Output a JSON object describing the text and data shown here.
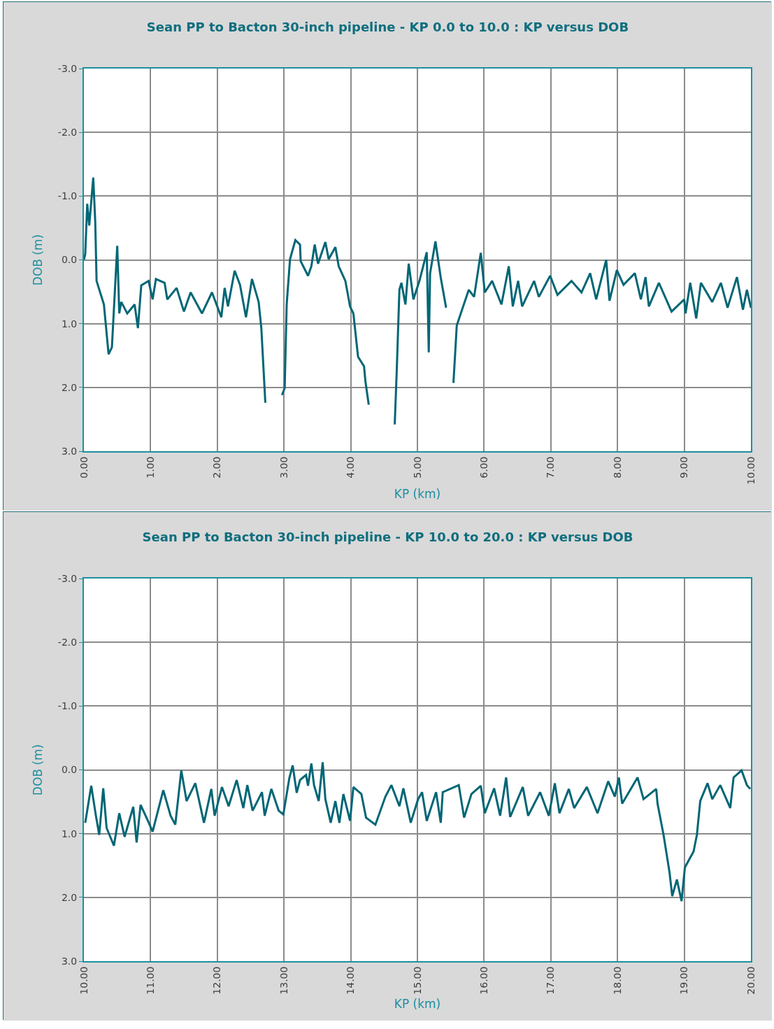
{
  "chart_data": [
    {
      "type": "line",
      "title": "Sean PP to Bacton 30-inch pipeline - KP 0.0 to 10.0 : KP versus DOB",
      "xlabel": "KP (km)",
      "ylabel": "DOB (m)",
      "grid": true,
      "xlim": [
        0,
        10
      ],
      "ylim": [
        3,
        -3
      ],
      "xticks": [
        {
          "value": 0,
          "label": "0.00"
        },
        {
          "value": 1,
          "label": "1.00"
        },
        {
          "value": 2,
          "label": "2.00"
        },
        {
          "value": 3,
          "label": "3.00"
        },
        {
          "value": 4,
          "label": "4.00"
        },
        {
          "value": 5,
          "label": "5.00"
        },
        {
          "value": 6,
          "label": "6.00"
        },
        {
          "value": 7,
          "label": "7.00"
        },
        {
          "value": 8,
          "label": "8.00"
        },
        {
          "value": 9,
          "label": "9.00"
        },
        {
          "value": 10,
          "label": "10.00"
        }
      ],
      "yticks": [
        {
          "value": -3,
          "label": "-3.0"
        },
        {
          "value": -2,
          "label": "-2.0"
        },
        {
          "value": -1,
          "label": "-1.0"
        },
        {
          "value": 0,
          "label": "0.0"
        },
        {
          "value": 1,
          "label": "1.0"
        },
        {
          "value": 2,
          "label": "2.0"
        },
        {
          "value": 3,
          "label": "3.0"
        }
      ],
      "x": [
        0,
        0.02,
        0.05,
        0.08,
        0.14,
        0.17,
        0.19,
        0.3,
        0.37,
        0.42,
        0.5,
        0.53,
        0.56,
        0.65,
        0.76,
        0.81,
        0.86,
        0.97,
        1.03,
        1.08,
        1.21,
        1.25,
        1.39,
        1.5,
        1.6,
        1.77,
        1.92,
        2.06,
        2.11,
        2.16,
        2.26,
        2.34,
        2.43,
        2.52,
        2.62,
        2.66,
        2.72,
        2.85,
        2.97,
        3.01,
        3.04,
        3.09,
        3.17,
        3.24,
        3.25,
        3.36,
        3.41,
        3.46,
        3.51,
        3.62,
        3.67,
        3.77,
        3.82,
        3.92,
        3.99,
        4.04,
        4.11,
        4.2,
        4.22,
        4.27,
        4.45,
        4.66,
        4.69,
        4.73,
        4.76,
        4.82,
        4.87,
        4.94,
        5.03,
        5.14,
        5.17,
        5.19,
        5.27,
        5.35,
        5.43,
        5.5,
        5.54,
        5.59,
        5.66,
        5.77,
        5.85,
        5.95,
        6.01,
        6.12,
        6.26,
        6.37,
        6.43,
        6.51,
        6.57,
        6.75,
        6.82,
        6.99,
        7.1,
        7.31,
        7.46,
        7.59,
        7.68,
        7.83,
        7.88,
        7.99,
        8.09,
        8.26,
        8.35,
        8.42,
        8.47,
        8.62,
        8.81,
        9,
        9.02,
        9.09,
        9.18,
        9.25,
        9.42,
        9.55,
        9.65,
        9.79,
        9.88,
        9.94,
        10
      ],
      "series": [
        {
          "color": "#006675",
          "values": [
            0,
            -0.09,
            -0.88,
            -0.54,
            -1.29,
            -0.6,
            0.33,
            0.7,
            1.48,
            1.37,
            -0.22,
            0.84,
            0.66,
            0.84,
            0.7,
            1.07,
            0.4,
            0.33,
            0.62,
            0.3,
            0.36,
            0.62,
            0.44,
            0.81,
            0.51,
            0.84,
            0.51,
            0.9,
            0.44,
            0.73,
            0.17,
            0.39,
            0.9,
            0.3,
            0.66,
            1.07,
            2.24,
            null,
            2.12,
            2.01,
            0.7,
            -0.01,
            -0.31,
            -0.24,
            0.02,
            0.25,
            0.1,
            -0.24,
            0.06,
            -0.28,
            -0.01,
            -0.2,
            0.1,
            0.33,
            0.73,
            0.84,
            1.52,
            1.67,
            1.9,
            2.27,
            null,
            2.58,
            1.74,
            0.47,
            0.36,
            0.7,
            0.06,
            0.62,
            0.33,
            -0.12,
            1.45,
            0.21,
            -0.29,
            0.28,
            0.75,
            null,
            1.93,
            1.03,
            0.81,
            0.47,
            0.58,
            -0.11,
            0.51,
            0.33,
            0.7,
            0.1,
            0.73,
            0.33,
            0.73,
            0.33,
            0.58,
            0.25,
            0.55,
            0.33,
            0.51,
            0.21,
            0.62,
            0,
            0.64,
            0.16,
            0.39,
            0.21,
            0.62,
            0.27,
            0.73,
            0.36,
            0.81,
            0.62,
            0.84,
            0.36,
            0.92,
            0.36,
            0.66,
            0.36,
            0.75,
            0.27,
            0.78,
            0.47,
            0.75
          ]
        }
      ]
    },
    {
      "type": "line",
      "title": "Sean PP to Bacton 30-inch pipeline - KP 10.0 to 20.0 : KP versus DOB",
      "xlabel": "KP (km)",
      "ylabel": "DOB (m)",
      "grid": true,
      "xlim": [
        10,
        20
      ],
      "ylim": [
        3,
        -3
      ],
      "xticks": [
        {
          "value": 10,
          "label": "10.00"
        },
        {
          "value": 11,
          "label": "11.00"
        },
        {
          "value": 12,
          "label": "12.00"
        },
        {
          "value": 13,
          "label": "13.00"
        },
        {
          "value": 14,
          "label": "14.00"
        },
        {
          "value": 15,
          "label": "15.00"
        },
        {
          "value": 16,
          "label": "16.00"
        },
        {
          "value": 17,
          "label": "17.00"
        },
        {
          "value": 18,
          "label": "18.00"
        },
        {
          "value": 19,
          "label": "19.00"
        },
        {
          "value": 20,
          "label": "20.00"
        }
      ],
      "yticks": [
        {
          "value": -3,
          "label": "-3.0"
        },
        {
          "value": -2,
          "label": "-2.0"
        },
        {
          "value": -1,
          "label": "-1.0"
        },
        {
          "value": 0,
          "label": "0.0"
        },
        {
          "value": 1,
          "label": "1.0"
        },
        {
          "value": 2,
          "label": "2.0"
        },
        {
          "value": 3,
          "label": "3.0"
        }
      ],
      "x": [
        10.02,
        10.11,
        10.18,
        10.23,
        10.29,
        10.34,
        10.45,
        10.53,
        10.61,
        10.74,
        10.79,
        10.85,
        10.96,
        11.03,
        11.19,
        11.3,
        11.37,
        11.46,
        11.54,
        11.67,
        11.8,
        11.91,
        11.96,
        12.07,
        12.17,
        12.29,
        12.39,
        12.45,
        12.53,
        12.67,
        12.71,
        12.81,
        12.92,
        12.99,
        13.08,
        13.13,
        13.19,
        13.24,
        13.33,
        13.36,
        13.41,
        13.45,
        13.52,
        13.58,
        13.62,
        13.7,
        13.77,
        13.83,
        13.89,
        13.99,
        14.04,
        14.16,
        14.23,
        14.37,
        14.52,
        14.61,
        14.73,
        14.79,
        14.9,
        15.01,
        15.07,
        15.14,
        15.28,
        15.35,
        15.38,
        15.62,
        15.7,
        15.81,
        15.95,
        16.01,
        16.15,
        16.24,
        16.33,
        16.39,
        16.58,
        16.66,
        16.84,
        16.97,
        17.06,
        17.13,
        17.27,
        17.35,
        17.54,
        17.7,
        17.86,
        17.96,
        18.02,
        18.07,
        18.3,
        18.39,
        18.58,
        18.6,
        18.69,
        18.78,
        18.82,
        18.89,
        18.96,
        19.01,
        19.14,
        19.19,
        19.24,
        19.35,
        19.42,
        19.54,
        19.69,
        19.74,
        19.86,
        19.94,
        19.99
      ],
      "series": [
        {
          "color": "#006675",
          "values": [
            0.83,
            0.25,
            0.72,
            1.02,
            0.29,
            0.91,
            1.19,
            0.68,
            1.05,
            0.58,
            1.14,
            0.55,
            0.8,
            0.97,
            0.32,
            0.72,
            0.86,
            0.01,
            0.49,
            0.21,
            0.83,
            0.3,
            0.72,
            0.27,
            0.57,
            0.16,
            0.6,
            0.24,
            0.64,
            0.35,
            0.72,
            0.3,
            0.64,
            0.7,
            0.13,
            -0.07,
            0.36,
            0.16,
            0.08,
            0.25,
            -0.1,
            0.24,
            0.49,
            -0.12,
            0.46,
            0.83,
            0.49,
            0.83,
            0.38,
            0.8,
            0.27,
            0.38,
            0.75,
            0.86,
            0.42,
            0.24,
            0.57,
            0.29,
            0.83,
            0.46,
            0.35,
            0.8,
            0.35,
            0.83,
            0.35,
            0.24,
            0.75,
            0.38,
            0.25,
            0.68,
            0.29,
            0.72,
            0.12,
            0.74,
            0.27,
            0.72,
            0.35,
            0.72,
            0.21,
            0.68,
            0.3,
            0.6,
            0.27,
            0.68,
            0.18,
            0.42,
            0.12,
            0.53,
            0.12,
            0.46,
            0.3,
            0.53,
            1.02,
            1.61,
            1.98,
            1.72,
            2.06,
            1.53,
            1.28,
            1.02,
            0.49,
            0.21,
            0.46,
            0.24,
            0.6,
            0.12,
            0.01,
            0.24,
            0.3
          ]
        }
      ]
    }
  ]
}
